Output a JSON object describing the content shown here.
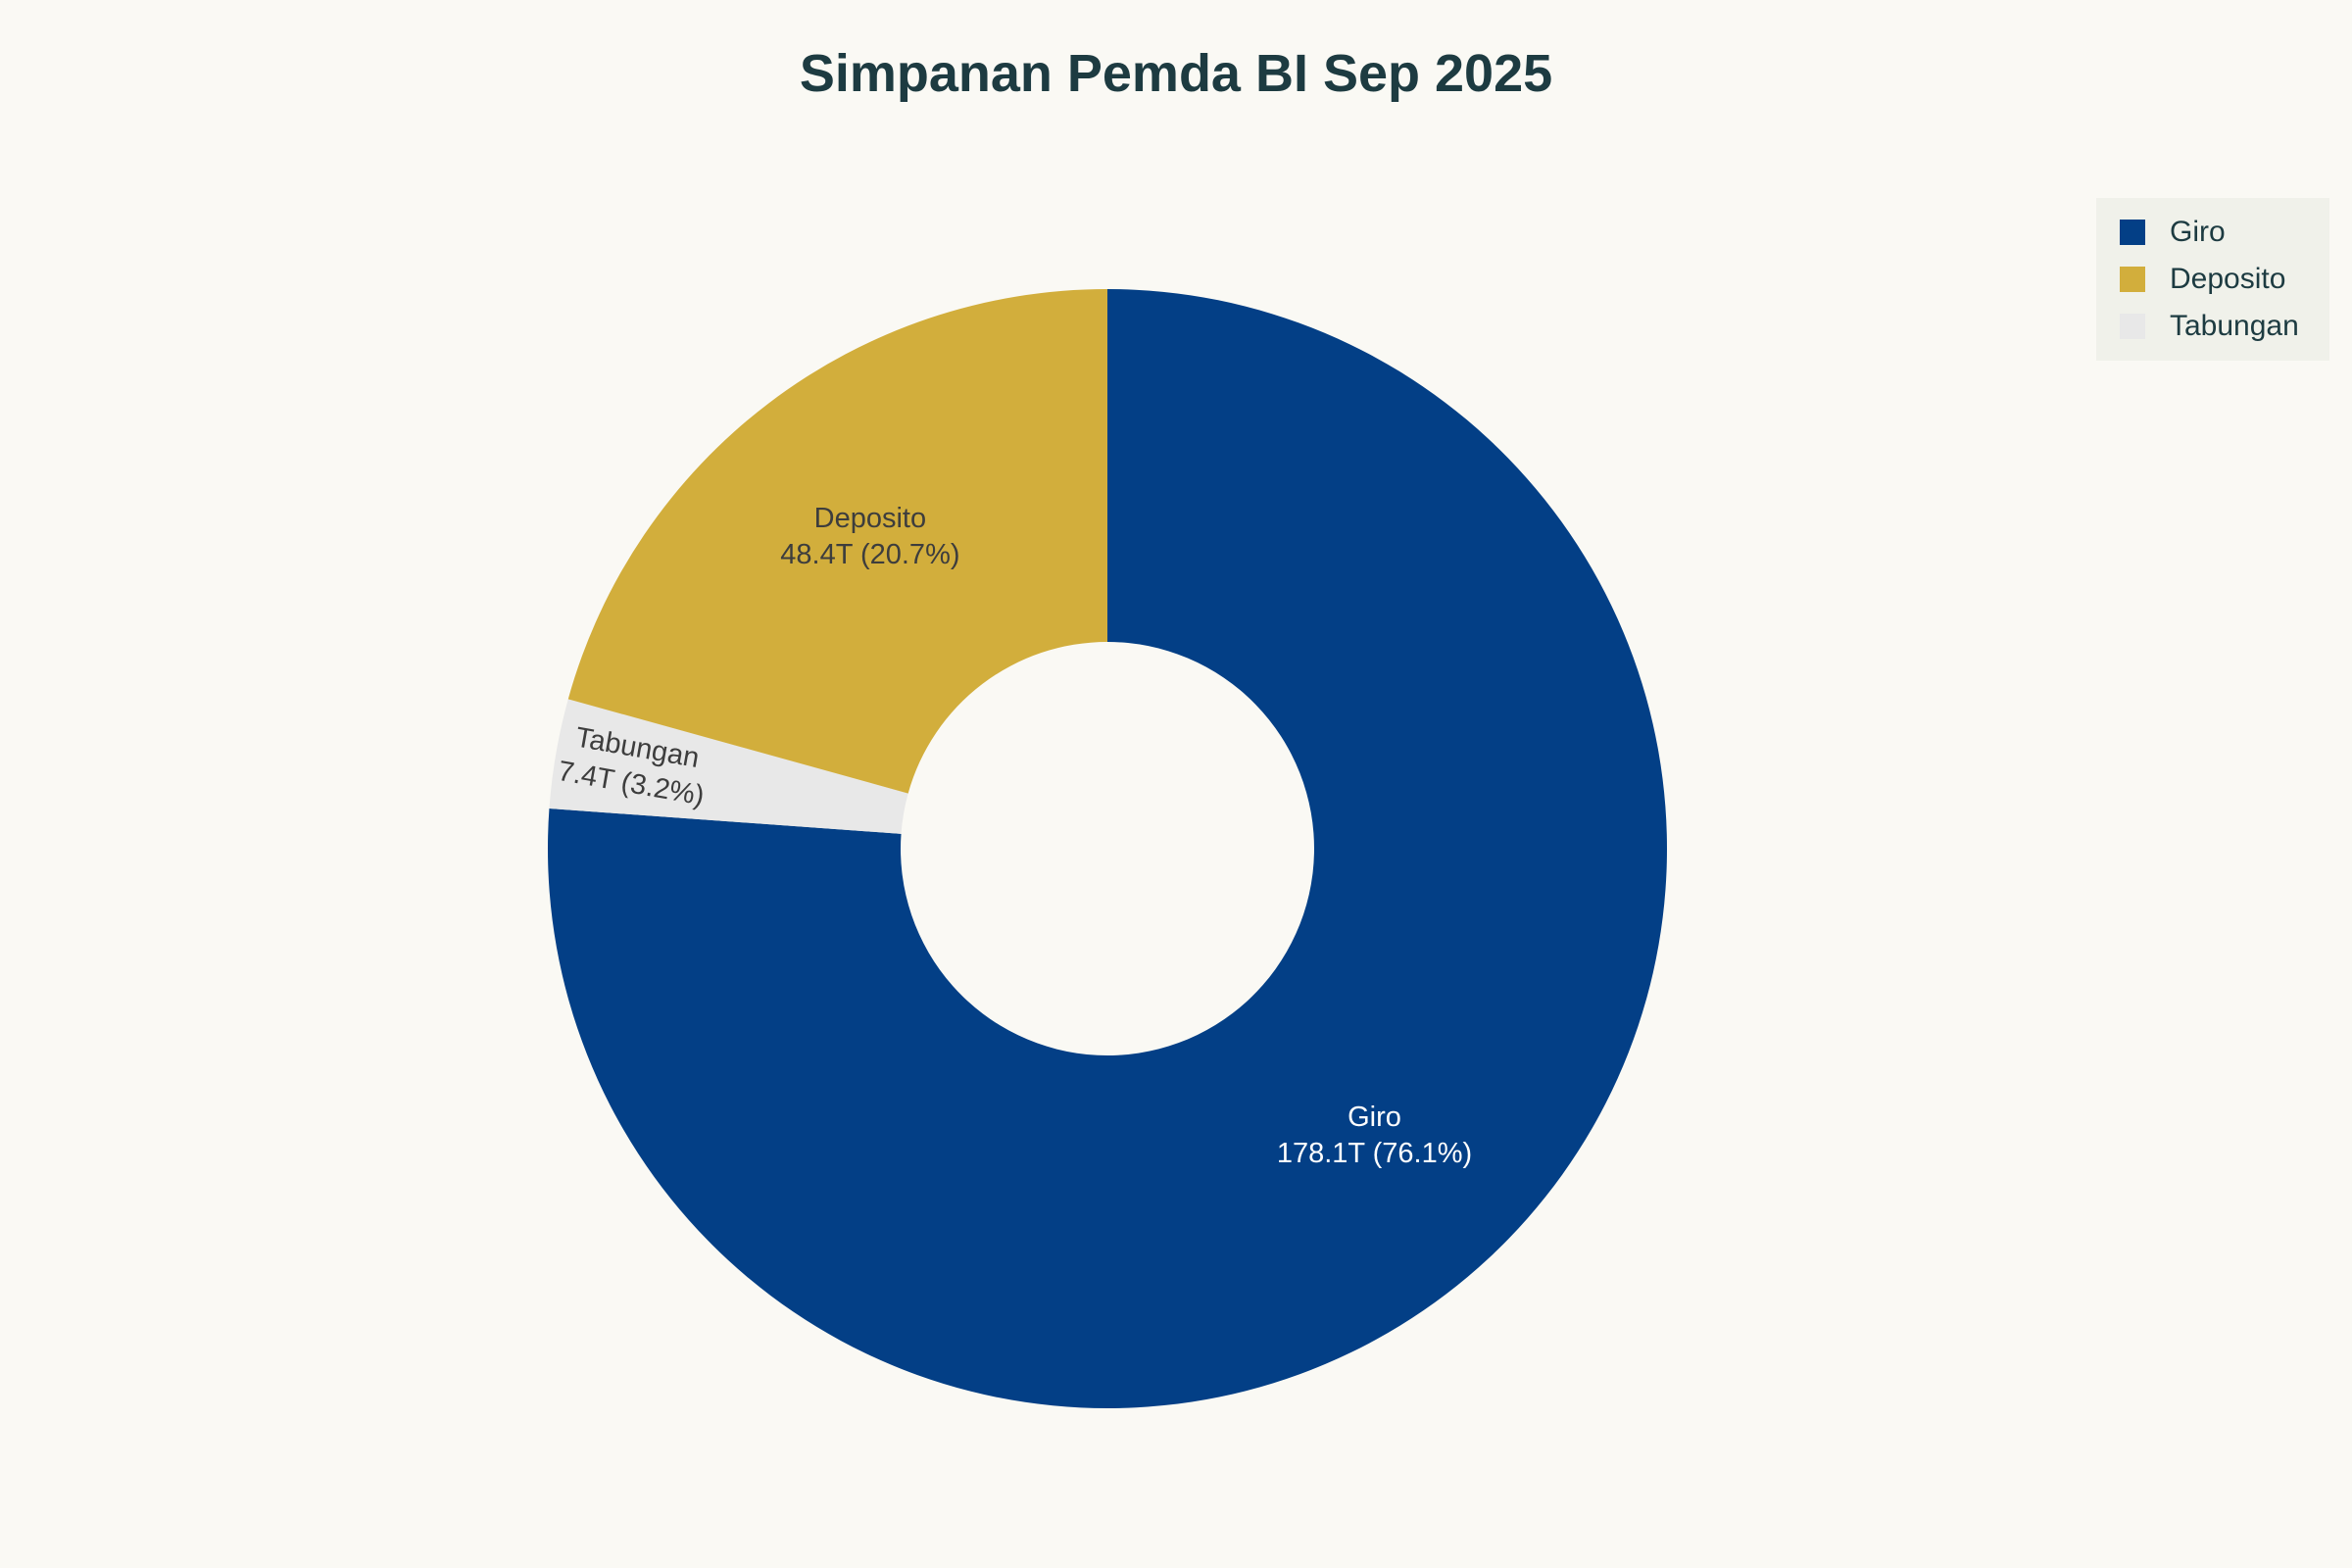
{
  "chart_data": {
    "type": "pie",
    "title": "Simpanan Pemda BI Sep 2025",
    "slices": [
      {
        "name": "Giro",
        "value_t": 178.1,
        "pct": 76.1,
        "value_label": "178.1T (76.1%)",
        "color": "#033f86"
      },
      {
        "name": "Deposito",
        "value_t": 48.4,
        "pct": 20.7,
        "value_label": "48.4T (20.7%)",
        "color": "#d2ae3c"
      },
      {
        "name": "Tabungan",
        "value_t": 7.4,
        "pct": 3.2,
        "value_label": "7.4T (3.2%)",
        "color": "#e8e8e8"
      }
    ],
    "donut_hole_ratio": 0.37,
    "start_angle": "12-oclock",
    "direction": "clockwise",
    "draw_order": [
      "Giro",
      "Tabungan",
      "Deposito"
    ],
    "legend_position": "top-right",
    "legend_entries": [
      "Giro",
      "Deposito",
      "Tabungan"
    ]
  },
  "colors": {
    "background": "#faf9f4",
    "legend_background": "#f0f1ea",
    "title_text": "#1d3b41",
    "label_dark": "#3d3d3d",
    "label_light": "#ffffff"
  }
}
